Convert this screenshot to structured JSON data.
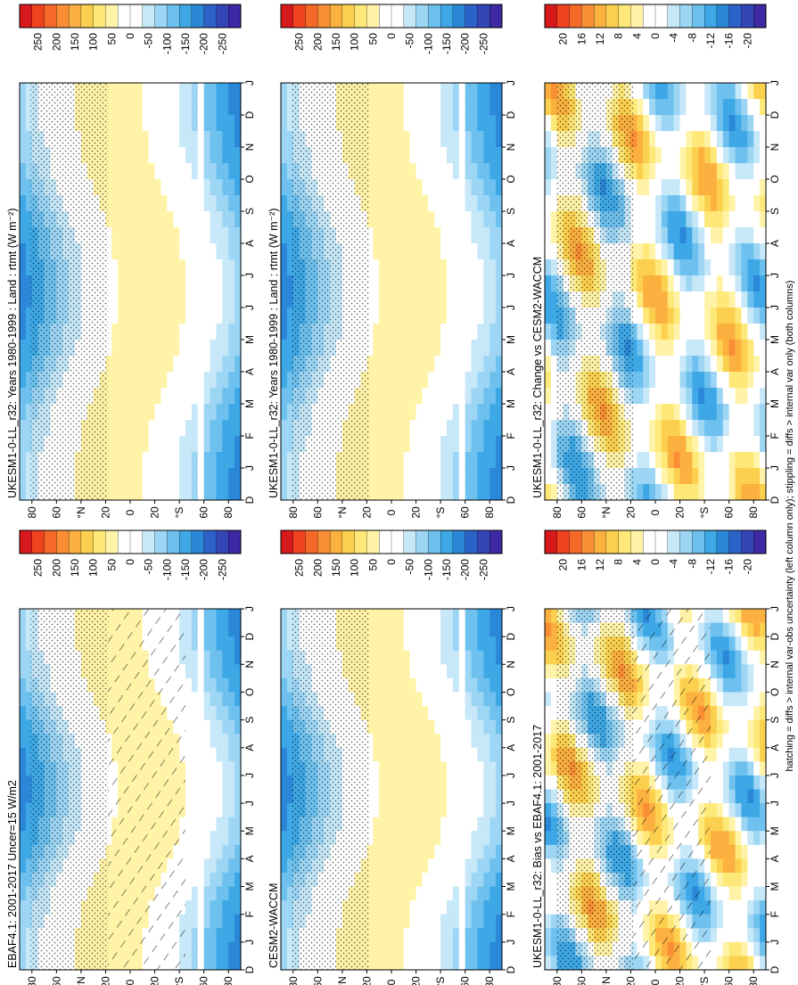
{
  "footnote": "hatching = diffs > internal var-obs uncertainty (left column only); stippling = diffs > internal var only (both columns)",
  "chart_data": [
    {
      "type": "heatmap",
      "title": "UKESM1-0-LL_r32: Years 1980-1999 : Land : rtmt (W m⁻²)",
      "x_ticks": [
        "D",
        "J",
        "F",
        "M",
        "A",
        "M",
        "J",
        "J",
        "A",
        "S",
        "O",
        "N",
        "D",
        "J"
      ],
      "y_ticks": [
        "80",
        "60",
        "°N",
        "20",
        "0",
        "20",
        "°S",
        "60",
        "80"
      ],
      "colorbar": {
        "levels": [
          "250",
          "200",
          "150",
          "100",
          "50",
          "0",
          "-50",
          "-100",
          "-150",
          "-200",
          "-250"
        ],
        "colors": [
          "#d7191c",
          "#f0421f",
          "#f4692a",
          "#f98e35",
          "#fbb040",
          "#fcd04f",
          "#fde878",
          "#fff3a8",
          "#ffffff",
          "#ffffff",
          "#c6e8f8",
          "#9dd6f4",
          "#6ec1ee",
          "#3ea8e6",
          "#2b87d8",
          "#2d63c9",
          "#3445b6",
          "#3c29a3"
        ]
      }
    },
    {
      "type": "heatmap",
      "title": "UKESM1-0-LL_r32: Years 1980-1999 : Land : rtmt (W m⁻²)",
      "x_ticks": [
        "D",
        "J",
        "F",
        "M",
        "A",
        "M",
        "J",
        "J",
        "A",
        "S",
        "O",
        "N",
        "D",
        "J"
      ],
      "y_ticks": [
        "80",
        "60",
        "°N",
        "20",
        "0",
        "20",
        "°S",
        "60",
        "80"
      ],
      "colorbar": {
        "levels": [
          "250",
          "200",
          "150",
          "100",
          "50",
          "0",
          "-50",
          "-100",
          "-150",
          "-200",
          "-250"
        ],
        "colors": [
          "#d7191c",
          "#f0421f",
          "#f4692a",
          "#f98e35",
          "#fbb040",
          "#fcd04f",
          "#fde878",
          "#fff3a8",
          "#ffffff",
          "#ffffff",
          "#c6e8f8",
          "#9dd6f4",
          "#6ec1ee",
          "#3ea8e6",
          "#2b87d8",
          "#2d63c9",
          "#3445b6",
          "#3c29a3"
        ]
      }
    },
    {
      "type": "heatmap",
      "title": "EBAF4.1: 2001-2017 Uncer=15 W/m2",
      "x_ticks": [
        "D",
        "J",
        "F",
        "M",
        "A",
        "M",
        "J",
        "J",
        "A",
        "S",
        "O",
        "N",
        "D",
        "J"
      ],
      "y_ticks": [
        "80",
        "60",
        "°N",
        "20",
        "0",
        "20",
        "°S",
        "60",
        "80"
      ],
      "colorbar": {
        "levels": [
          "250",
          "200",
          "150",
          "100",
          "50",
          "0",
          "-50",
          "-100",
          "-150",
          "-200",
          "-250"
        ],
        "colors": [
          "#d7191c",
          "#f0421f",
          "#f4692a",
          "#f98e35",
          "#fbb040",
          "#fcd04f",
          "#fde878",
          "#fff3a8",
          "#ffffff",
          "#ffffff",
          "#c6e8f8",
          "#9dd6f4",
          "#6ec1ee",
          "#3ea8e6",
          "#2b87d8",
          "#2d63c9",
          "#3445b6",
          "#3c29a3"
        ]
      }
    },
    {
      "type": "heatmap",
      "title": "CESM2-WACCM",
      "x_ticks": [
        "D",
        "J",
        "F",
        "M",
        "A",
        "M",
        "J",
        "J",
        "A",
        "S",
        "O",
        "N",
        "D",
        "J"
      ],
      "y_ticks": [
        "80",
        "60",
        "°N",
        "20",
        "0",
        "20",
        "°S",
        "60",
        "80"
      ],
      "colorbar": {
        "levels": [
          "250",
          "200",
          "150",
          "100",
          "50",
          "0",
          "-50",
          "-100",
          "-150",
          "-200",
          "-250"
        ],
        "colors": [
          "#d7191c",
          "#f0421f",
          "#f4692a",
          "#f98e35",
          "#fbb040",
          "#fcd04f",
          "#fde878",
          "#fff3a8",
          "#ffffff",
          "#ffffff",
          "#c6e8f8",
          "#9dd6f4",
          "#6ec1ee",
          "#3ea8e6",
          "#2b87d8",
          "#2d63c9",
          "#3445b6",
          "#3c29a3"
        ]
      }
    },
    {
      "type": "heatmap",
      "title": "UKESM1-0-LL_r32: Bias vs EBAF4.1: 2001-2017",
      "x_ticks": [
        "D",
        "J",
        "F",
        "M",
        "A",
        "M",
        "J",
        "J",
        "A",
        "S",
        "O",
        "N",
        "D",
        "J"
      ],
      "y_ticks": [
        "80",
        "60",
        "°N",
        "20",
        "0",
        "20",
        "°S",
        "60",
        "80"
      ],
      "colorbar": {
        "levels": [
          "20",
          "16",
          "12",
          "8",
          "4",
          "0",
          "-4",
          "-8",
          "-12",
          "-16",
          "-20"
        ],
        "colors": [
          "#d7191c",
          "#f0421f",
          "#f4692a",
          "#f98e35",
          "#fbb040",
          "#fcd04f",
          "#fde878",
          "#fff3a8",
          "#ffffff",
          "#ffffff",
          "#c6e8f8",
          "#9dd6f4",
          "#6ec1ee",
          "#3ea8e6",
          "#2b87d8",
          "#2d63c9",
          "#3445b6",
          "#3c29a3"
        ]
      }
    },
    {
      "type": "heatmap",
      "title": "UKESM1-0-LL_r32: Change vs CESM2-WACCM",
      "x_ticks": [
        "D",
        "J",
        "F",
        "M",
        "A",
        "M",
        "J",
        "J",
        "A",
        "S",
        "O",
        "N",
        "D",
        "J"
      ],
      "y_ticks": [
        "80",
        "60",
        "°N",
        "20",
        "0",
        "20",
        "°S",
        "60",
        "80"
      ],
      "colorbar": {
        "levels": [
          "20",
          "16",
          "12",
          "8",
          "4",
          "0",
          "-4",
          "-8",
          "-12",
          "-16",
          "-20"
        ],
        "colors": [
          "#d7191c",
          "#f0421f",
          "#f4692a",
          "#f98e35",
          "#fbb040",
          "#fcd04f",
          "#fde878",
          "#fff3a8",
          "#ffffff",
          "#ffffff",
          "#c6e8f8",
          "#9dd6f4",
          "#6ec1ee",
          "#3ea8e6",
          "#2b87d8",
          "#2d63c9",
          "#3445b6",
          "#3c29a3"
        ]
      }
    }
  ]
}
